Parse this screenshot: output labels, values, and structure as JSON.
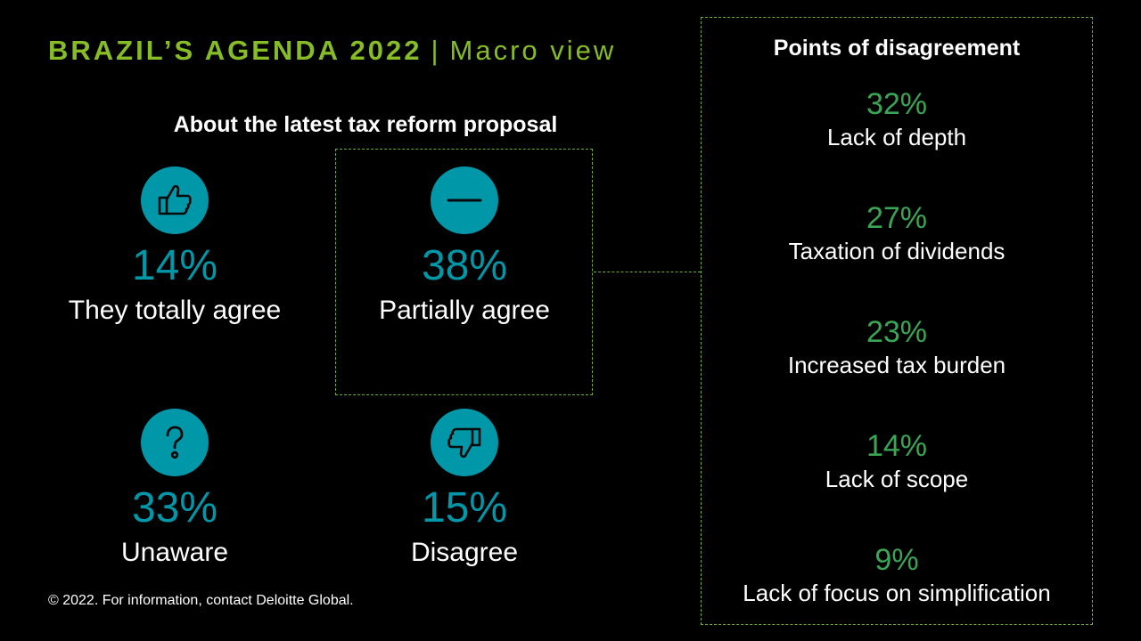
{
  "title": {
    "main": "BRAZIL’S AGENDA 2022",
    "separator": "|",
    "sub": "Macro view"
  },
  "section_heading": "About the latest tax reform proposal",
  "stats": {
    "totally_agree": {
      "value": "14%",
      "label": "They totally agree",
      "icon": "thumbs-up-icon"
    },
    "partially_agree": {
      "value": "38%",
      "label": "Partially agree",
      "icon": "minus-icon"
    },
    "unaware": {
      "value": "33%",
      "label": "Unaware",
      "icon": "question-icon"
    },
    "disagree": {
      "value": "15%",
      "label": "Disagree",
      "icon": "thumbs-down-icon"
    }
  },
  "disagreement": {
    "title": "Points of disagreement",
    "items": [
      {
        "value": "32%",
        "label": "Lack of depth"
      },
      {
        "value": "27%",
        "label": "Taxation of dividends"
      },
      {
        "value": "23%",
        "label": "Increased tax burden"
      },
      {
        "value": "14%",
        "label": "Lack of scope"
      },
      {
        "value": "9%",
        "label": "Lack of focus on simplification"
      }
    ]
  },
  "footer": "© 2022. For information, contact Deloitte Global.",
  "colors": {
    "background": "#000000",
    "title_green": "#86bc25",
    "teal": "#0097a9",
    "reason_green": "#3aa655",
    "border_green": "#6fae3a"
  }
}
